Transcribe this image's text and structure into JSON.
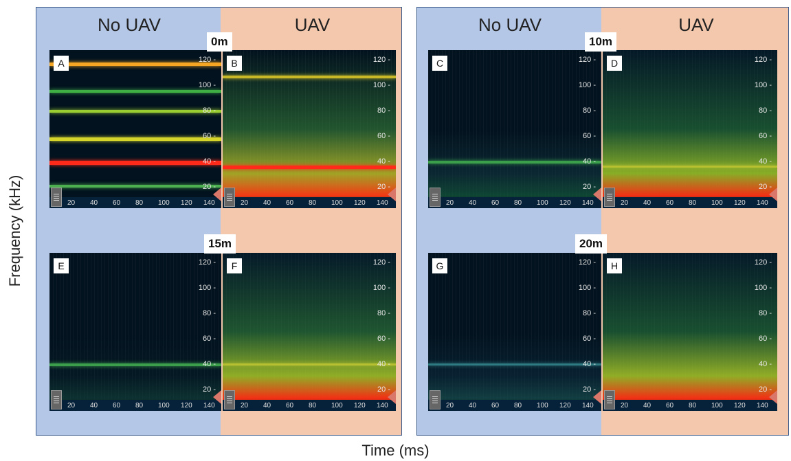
{
  "axis_labels": {
    "y": "Frequency (kHz)",
    "x": "Time (ms)"
  },
  "headers": {
    "no_uav": "No UAV",
    "uav": "UAV"
  },
  "distances": [
    "0m",
    "10m",
    "15m",
    "20m"
  ],
  "freq_ticks": [
    "120",
    "100",
    "80",
    "60",
    "40",
    "20"
  ],
  "time_ticks": [
    "20",
    "40",
    "60",
    "80",
    "100",
    "120",
    "140"
  ],
  "panels": [
    {
      "letter": "A",
      "condition": "No UAV",
      "distance": "0m"
    },
    {
      "letter": "B",
      "condition": "UAV",
      "distance": "0m"
    },
    {
      "letter": "C",
      "condition": "No UAV",
      "distance": "10m"
    },
    {
      "letter": "D",
      "condition": "UAV",
      "distance": "10m"
    },
    {
      "letter": "E",
      "condition": "No UAV",
      "distance": "15m"
    },
    {
      "letter": "F",
      "condition": "UAV",
      "distance": "15m"
    },
    {
      "letter": "G",
      "condition": "No UAV",
      "distance": "20m"
    },
    {
      "letter": "H",
      "condition": "UAV",
      "distance": "20m"
    }
  ],
  "colors": {
    "no_uav_bg": "#b4c7e7",
    "uav_bg": "#f4c8ad",
    "frame": "#3a5a8c",
    "spectrogram_bg": "#02121e"
  }
}
